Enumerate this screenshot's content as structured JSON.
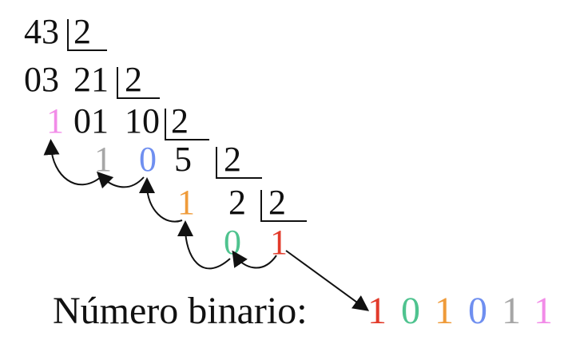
{
  "rows": [
    {
      "dividend": "43",
      "divisor": "2"
    },
    {
      "remainder_line": "03",
      "dividend": "21",
      "divisor": "2"
    },
    {
      "remainder": "1",
      "partial": "01",
      "dividend": "10",
      "divisor": "2"
    },
    {
      "remainder_a": "1",
      "remainder_b": "0",
      "dividend": "5",
      "divisor": "2"
    },
    {
      "remainder": "1",
      "dividend": "2",
      "divisor": "2"
    },
    {
      "remainder": "0",
      "quotient": "1"
    }
  ],
  "result": {
    "label": "Número binario:",
    "bits": [
      "1",
      "0",
      "1",
      "0",
      "1",
      "1"
    ]
  },
  "colors": {
    "pink": "#f28ce8",
    "gray": "#a6a6a6",
    "blue": "#6f8ff0",
    "orange": "#ef9b3a",
    "green": "#4fc38f",
    "red": "#e23a2a",
    "ink": "#111111"
  }
}
